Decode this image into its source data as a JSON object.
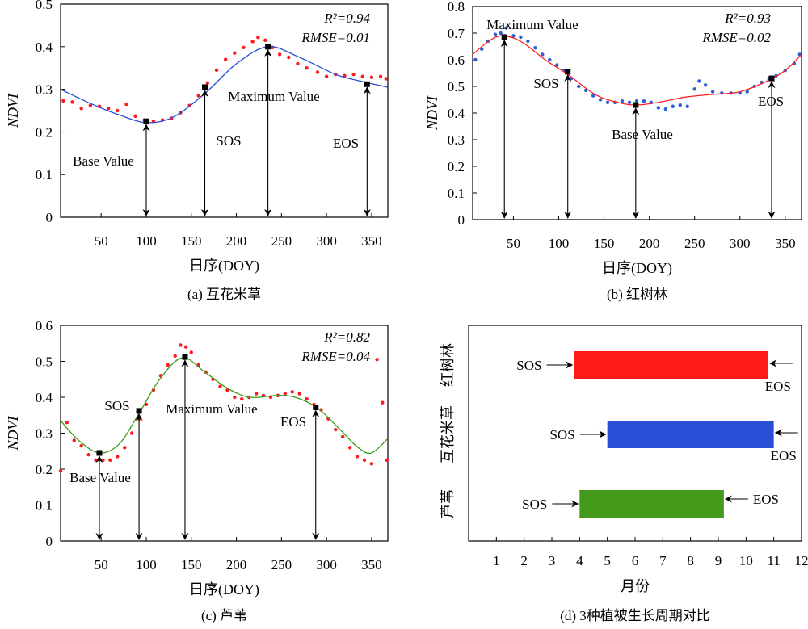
{
  "chart_data": [
    {
      "type": "scatter",
      "caption": "(a) 互花米草",
      "xlabel": "日序(DOY)",
      "ylabel": "NDVI",
      "xlim": [
        5,
        368
      ],
      "ylim": [
        0,
        0.5
      ],
      "xticks": [
        50,
        100,
        150,
        200,
        250,
        300,
        350
      ],
      "yticks": [
        0,
        0.1,
        0.2,
        0.3,
        0.4,
        0.5
      ],
      "r2": "R²=0.94",
      "rmse": "RMSE=0.01",
      "colors": {
        "points": "#ff1a1a",
        "curve": "#2a4ed8"
      },
      "fit_curve": [
        [
          5,
          0.3
        ],
        [
          40,
          0.265
        ],
        [
          70,
          0.24
        ],
        [
          100,
          0.222
        ],
        [
          130,
          0.235
        ],
        [
          165,
          0.29
        ],
        [
          200,
          0.36
        ],
        [
          235,
          0.4
        ],
        [
          270,
          0.375
        ],
        [
          310,
          0.335
        ],
        [
          340,
          0.318
        ],
        [
          368,
          0.305
        ]
      ],
      "points": [
        [
          8,
          0.273
        ],
        [
          18,
          0.27
        ],
        [
          28,
          0.255
        ],
        [
          38,
          0.262
        ],
        [
          48,
          0.26
        ],
        [
          58,
          0.255
        ],
        [
          68,
          0.25
        ],
        [
          78,
          0.265
        ],
        [
          88,
          0.237
        ],
        [
          98,
          0.228
        ],
        [
          108,
          0.225
        ],
        [
          118,
          0.228
        ],
        [
          128,
          0.232
        ],
        [
          138,
          0.245
        ],
        [
          148,
          0.262
        ],
        [
          158,
          0.285
        ],
        [
          168,
          0.315
        ],
        [
          178,
          0.345
        ],
        [
          188,
          0.37
        ],
        [
          198,
          0.385
        ],
        [
          208,
          0.398
        ],
        [
          218,
          0.412
        ],
        [
          224,
          0.422
        ],
        [
          232,
          0.415
        ],
        [
          240,
          0.398
        ],
        [
          248,
          0.382
        ],
        [
          258,
          0.375
        ],
        [
          268,
          0.36
        ],
        [
          278,
          0.35
        ],
        [
          290,
          0.34
        ],
        [
          300,
          0.33
        ],
        [
          310,
          0.335
        ],
        [
          320,
          0.332
        ],
        [
          330,
          0.335
        ],
        [
          340,
          0.33
        ],
        [
          350,
          0.328
        ],
        [
          360,
          0.33
        ],
        [
          366,
          0.325
        ]
      ],
      "markers": [
        {
          "label": "Base Value",
          "x": 100,
          "y": 0.225
        },
        {
          "label": "SOS",
          "x": 165,
          "y": 0.305
        },
        {
          "label": "Maximum Value",
          "x": 235,
          "y": 0.4
        },
        {
          "label": "EOS",
          "x": 345,
          "y": 0.312
        }
      ]
    },
    {
      "type": "scatter",
      "caption": "(b) 红树林",
      "xlabel": "日序(DOY)",
      "ylabel": "NDVI",
      "xlim": [
        5,
        368
      ],
      "ylim": [
        0,
        0.8
      ],
      "xticks": [
        50,
        100,
        150,
        200,
        250,
        300,
        350
      ],
      "yticks": [
        0,
        0.1,
        0.2,
        0.3,
        0.4,
        0.5,
        0.6,
        0.7,
        0.8
      ],
      "r2": "R²=0.93",
      "rmse": "RMSE=0.02",
      "colors": {
        "points": "#2a5fd8",
        "curve": "#ff2020"
      },
      "fit_curve": [
        [
          5,
          0.62
        ],
        [
          25,
          0.675
        ],
        [
          40,
          0.69
        ],
        [
          60,
          0.665
        ],
        [
          85,
          0.6
        ],
        [
          110,
          0.545
        ],
        [
          140,
          0.47
        ],
        [
          165,
          0.44
        ],
        [
          185,
          0.43
        ],
        [
          210,
          0.44
        ],
        [
          240,
          0.46
        ],
        [
          270,
          0.47
        ],
        [
          300,
          0.48
        ],
        [
          330,
          0.52
        ],
        [
          350,
          0.56
        ],
        [
          368,
          0.62
        ]
      ],
      "points": [
        [
          8,
          0.6
        ],
        [
          15,
          0.64
        ],
        [
          22,
          0.67
        ],
        [
          30,
          0.695
        ],
        [
          36,
          0.7
        ],
        [
          42,
          0.72
        ],
        [
          50,
          0.69
        ],
        [
          58,
          0.685
        ],
        [
          66,
          0.67
        ],
        [
          74,
          0.645
        ],
        [
          82,
          0.62
        ],
        [
          90,
          0.6
        ],
        [
          98,
          0.58
        ],
        [
          106,
          0.56
        ],
        [
          114,
          0.53
        ],
        [
          122,
          0.5
        ],
        [
          130,
          0.485
        ],
        [
          138,
          0.465
        ],
        [
          146,
          0.45
        ],
        [
          154,
          0.44
        ],
        [
          162,
          0.44
        ],
        [
          170,
          0.445
        ],
        [
          178,
          0.44
        ],
        [
          186,
          0.445
        ],
        [
          194,
          0.445
        ],
        [
          202,
          0.44
        ],
        [
          210,
          0.42
        ],
        [
          218,
          0.415
        ],
        [
          226,
          0.425
        ],
        [
          234,
          0.43
        ],
        [
          242,
          0.425
        ],
        [
          250,
          0.49
        ],
        [
          255,
          0.52
        ],
        [
          262,
          0.505
        ],
        [
          270,
          0.48
        ],
        [
          280,
          0.475
        ],
        [
          290,
          0.475
        ],
        [
          300,
          0.475
        ],
        [
          308,
          0.48
        ],
        [
          316,
          0.5
        ],
        [
          324,
          0.515
        ],
        [
          332,
          0.53
        ],
        [
          340,
          0.54
        ],
        [
          350,
          0.56
        ],
        [
          360,
          0.585
        ],
        [
          366,
          0.62
        ]
      ],
      "markers": [
        {
          "label": "Maximum Value",
          "x": 40,
          "y": 0.685
        },
        {
          "label": "SOS",
          "x": 110,
          "y": 0.555
        },
        {
          "label": "Base Value",
          "x": 185,
          "y": 0.43
        },
        {
          "label": "EOS",
          "x": 335,
          "y": 0.53
        }
      ]
    },
    {
      "type": "scatter",
      "caption": "(c) 芦苇",
      "xlabel": "日序(DOY)",
      "ylabel": "NDVI",
      "xlim": [
        5,
        368
      ],
      "ylim": [
        0,
        0.6
      ],
      "xticks": [
        50,
        100,
        150,
        200,
        250,
        300,
        350
      ],
      "yticks": [
        0,
        0.1,
        0.2,
        0.3,
        0.4,
        0.5,
        0.6
      ],
      "r2": "R²=0.82",
      "rmse": "RMSE=0.04",
      "colors": {
        "points": "#ff1a1a",
        "curve": "#3a9a1a"
      },
      "fit_curve": [
        [
          5,
          0.335
        ],
        [
          25,
          0.28
        ],
        [
          48,
          0.245
        ],
        [
          70,
          0.27
        ],
        [
          92,
          0.355
        ],
        [
          115,
          0.45
        ],
        [
          140,
          0.51
        ],
        [
          165,
          0.47
        ],
        [
          190,
          0.425
        ],
        [
          215,
          0.4
        ],
        [
          245,
          0.405
        ],
        [
          265,
          0.4
        ],
        [
          290,
          0.37
        ],
        [
          315,
          0.31
        ],
        [
          335,
          0.26
        ],
        [
          350,
          0.245
        ],
        [
          368,
          0.285
        ]
      ],
      "points": [
        [
          5,
          0.195
        ],
        [
          12,
          0.33
        ],
        [
          20,
          0.28
        ],
        [
          28,
          0.265
        ],
        [
          36,
          0.24
        ],
        [
          44,
          0.225
        ],
        [
          52,
          0.225
        ],
        [
          60,
          0.225
        ],
        [
          68,
          0.235
        ],
        [
          76,
          0.26
        ],
        [
          84,
          0.3
        ],
        [
          92,
          0.34
        ],
        [
          100,
          0.38
        ],
        [
          108,
          0.42
        ],
        [
          116,
          0.46
        ],
        [
          124,
          0.49
        ],
        [
          132,
          0.515
        ],
        [
          138,
          0.545
        ],
        [
          144,
          0.54
        ],
        [
          150,
          0.525
        ],
        [
          158,
          0.49
        ],
        [
          166,
          0.47
        ],
        [
          174,
          0.45
        ],
        [
          182,
          0.43
        ],
        [
          190,
          0.42
        ],
        [
          198,
          0.4
        ],
        [
          206,
          0.395
        ],
        [
          214,
          0.4
        ],
        [
          222,
          0.41
        ],
        [
          230,
          0.405
        ],
        [
          238,
          0.4
        ],
        [
          246,
          0.405
        ],
        [
          254,
          0.41
        ],
        [
          262,
          0.415
        ],
        [
          270,
          0.41
        ],
        [
          278,
          0.395
        ],
        [
          286,
          0.38
        ],
        [
          294,
          0.365
        ],
        [
          302,
          0.34
        ],
        [
          310,
          0.31
        ],
        [
          318,
          0.29
        ],
        [
          326,
          0.26
        ],
        [
          334,
          0.235
        ],
        [
          342,
          0.225
        ],
        [
          350,
          0.215
        ],
        [
          356,
          0.505
        ],
        [
          362,
          0.385
        ],
        [
          367,
          0.225
        ]
      ],
      "markers": [
        {
          "label": "Base Value",
          "x": 48,
          "y": 0.245
        },
        {
          "label": "SOS",
          "x": 92,
          "y": 0.362
        },
        {
          "label": "Maximum Value",
          "x": 143,
          "y": 0.512
        },
        {
          "label": "EOS",
          "x": 288,
          "y": 0.372
        }
      ]
    },
    {
      "type": "bar",
      "orientation": "horizontal",
      "caption": "(d) 3种植被生长周期对比",
      "xlabel": "月份",
      "xlim": [
        0,
        12
      ],
      "xticks": [
        1,
        2,
        3,
        4,
        5,
        6,
        7,
        8,
        9,
        10,
        11,
        12
      ],
      "categories": [
        "红树林",
        "互花米草",
        "芦苇"
      ],
      "ranges": [
        {
          "category": "红树林",
          "start": 3.8,
          "end": 10.8,
          "color": "#ff1a1a"
        },
        {
          "category": "互花米草",
          "start": 5.0,
          "end": 11.0,
          "color": "#2a4ed8"
        },
        {
          "category": "芦苇",
          "start": 4.0,
          "end": 9.2,
          "color": "#44991a"
        }
      ],
      "start_label": "SOS",
      "end_label": "EOS"
    }
  ]
}
